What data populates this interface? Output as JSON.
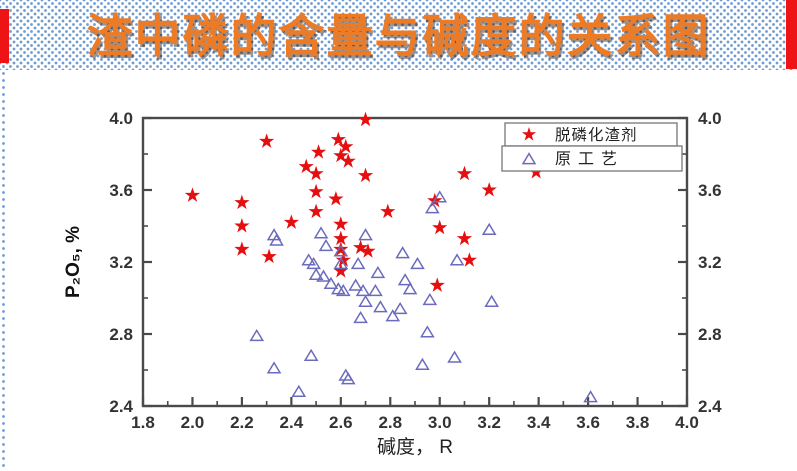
{
  "slide": {
    "title": "渣中磷的含量与碱度的关系图",
    "title_color": "#ed7b25",
    "banner_dot_color": "#6f9bd2",
    "accent_color": "#ee1416"
  },
  "chart_data": {
    "type": "scatter",
    "title": "",
    "xlabel": "碱度， R",
    "ylabel": "P₂O₅, %",
    "xlim": [
      1.8,
      4.0
    ],
    "ylim": [
      2.4,
      4.0
    ],
    "x_minor_step": 0.1,
    "y_minor_step": 0.2,
    "grid": false,
    "frame_color": "#4a4a4a",
    "tick_label_color": "#333333",
    "legend_position": "top-inside",
    "x_tick_values": [
      1.8,
      2.0,
      2.2,
      2.4,
      2.6,
      2.8,
      3.0,
      3.2,
      3.4,
      3.6,
      3.8,
      4.0
    ],
    "x_tick_labels": [
      "1.8",
      "2.0",
      "2.2",
      "2.4",
      "2.6",
      "2.8",
      "3.0",
      "3.2",
      "3.4",
      "3.6",
      "3.8",
      "4.0"
    ],
    "y_tick_values": [
      2.4,
      2.8,
      3.2,
      3.6,
      4.0
    ],
    "y_tick_labels": [
      "2.4",
      "2.8",
      "3.2",
      "3.6",
      "4.0"
    ],
    "series": [
      {
        "name": "脱磷化渣剂",
        "marker": "star",
        "color": "#e60f0f",
        "points": [
          [
            2.0,
            3.57
          ],
          [
            2.2,
            3.53
          ],
          [
            2.2,
            3.4
          ],
          [
            2.2,
            3.27
          ],
          [
            2.3,
            3.87
          ],
          [
            2.31,
            3.23
          ],
          [
            2.4,
            3.42
          ],
          [
            2.46,
            3.73
          ],
          [
            2.5,
            3.69
          ],
          [
            2.51,
            3.81
          ],
          [
            2.5,
            3.59
          ],
          [
            2.5,
            3.48
          ],
          [
            2.58,
            3.55
          ],
          [
            2.59,
            3.88
          ],
          [
            2.62,
            3.84
          ],
          [
            2.6,
            3.79
          ],
          [
            2.63,
            3.76
          ],
          [
            2.6,
            3.41
          ],
          [
            2.6,
            3.33
          ],
          [
            2.6,
            3.27
          ],
          [
            2.61,
            3.21
          ],
          [
            2.6,
            3.15
          ],
          [
            2.68,
            3.28
          ],
          [
            2.71,
            3.26
          ],
          [
            2.7,
            3.99
          ],
          [
            2.7,
            3.68
          ],
          [
            2.79,
            3.48
          ],
          [
            2.98,
            3.54
          ],
          [
            3.0,
            3.39
          ],
          [
            2.99,
            3.07
          ],
          [
            3.1,
            3.69
          ],
          [
            3.1,
            3.33
          ],
          [
            3.12,
            3.21
          ],
          [
            3.2,
            3.6
          ],
          [
            3.39,
            3.7
          ]
        ]
      },
      {
        "name": "原工艺",
        "marker": "triangle-open",
        "color": "#6b6bbd",
        "points": [
          [
            2.26,
            2.79
          ],
          [
            2.33,
            3.35
          ],
          [
            2.34,
            3.32
          ],
          [
            2.33,
            2.61
          ],
          [
            2.43,
            2.48
          ],
          [
            2.48,
            2.68
          ],
          [
            2.47,
            3.21
          ],
          [
            2.49,
            3.19
          ],
          [
            2.5,
            3.13
          ],
          [
            2.52,
            3.36
          ],
          [
            2.53,
            3.12
          ],
          [
            2.54,
            3.29
          ],
          [
            2.56,
            3.08
          ],
          [
            2.59,
            3.05
          ],
          [
            2.61,
            3.04
          ],
          [
            2.6,
            3.26
          ],
          [
            2.6,
            3.19
          ],
          [
            2.62,
            2.57
          ],
          [
            2.63,
            2.55
          ],
          [
            2.66,
            3.07
          ],
          [
            2.67,
            3.19
          ],
          [
            2.68,
            2.89
          ],
          [
            2.69,
            3.04
          ],
          [
            2.7,
            3.35
          ],
          [
            2.7,
            2.98
          ],
          [
            2.74,
            3.04
          ],
          [
            2.75,
            3.14
          ],
          [
            2.76,
            2.95
          ],
          [
            2.81,
            2.9
          ],
          [
            2.84,
            2.94
          ],
          [
            2.85,
            3.25
          ],
          [
            2.86,
            3.1
          ],
          [
            2.88,
            3.05
          ],
          [
            2.91,
            3.19
          ],
          [
            2.93,
            2.63
          ],
          [
            2.95,
            2.81
          ],
          [
            2.96,
            2.99
          ],
          [
            2.97,
            3.5
          ],
          [
            3.0,
            3.56
          ],
          [
            3.06,
            2.67
          ],
          [
            3.07,
            3.21
          ],
          [
            3.2,
            3.38
          ],
          [
            3.21,
            2.98
          ],
          [
            3.61,
            2.45
          ]
        ]
      }
    ]
  }
}
